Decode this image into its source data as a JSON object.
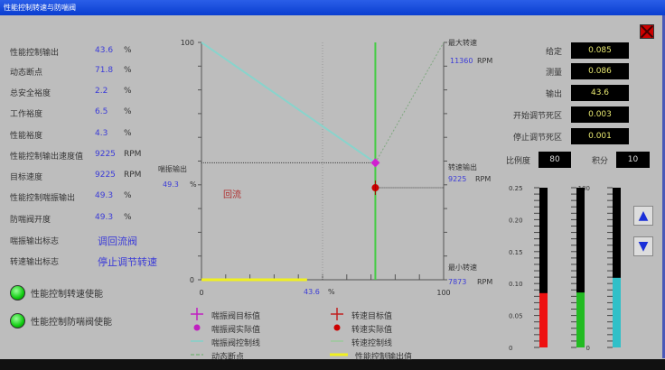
{
  "window": {
    "title": "性能控制转速与防喘阀"
  },
  "left_params": [
    {
      "label": "性能控制输出",
      "value": "43.6",
      "unit": "%"
    },
    {
      "label": "动态断点",
      "value": "71.8",
      "unit": "%"
    },
    {
      "label": "总安全裕度",
      "value": "2.2",
      "unit": "%"
    },
    {
      "label": "工作裕度",
      "value": "6.5",
      "unit": "%"
    },
    {
      "label": "性能裕度",
      "value": "4.3",
      "unit": "%"
    },
    {
      "label": "性能控制输出速度值",
      "value": "9225",
      "unit": "RPM"
    },
    {
      "label": "目标速度",
      "value": "9225",
      "unit": "RPM"
    },
    {
      "label": "性能控制喘振输出",
      "value": "49.3",
      "unit": "%"
    },
    {
      "label": "防喘阀开度",
      "value": "49.3",
      "unit": "%"
    },
    {
      "label": "喘振输出标志",
      "value": "调回流阀",
      "unit": ""
    },
    {
      "label": "转速输出标志",
      "value": "停止调节转速",
      "unit": ""
    }
  ],
  "indicators": [
    {
      "label": "性能控制转速使能",
      "color": "#22dd22"
    },
    {
      "label": "性能控制防喘阀使能",
      "color": "#22dd22"
    }
  ],
  "right_params": [
    {
      "label": "给定",
      "value": "0.085"
    },
    {
      "label": "测量",
      "value": "0.086"
    },
    {
      "label": "输出",
      "value": "43.6"
    },
    {
      "label": "开始调节死区",
      "value": "0.003"
    },
    {
      "label": "停止调节死区",
      "value": "0.001"
    }
  ],
  "pid": {
    "p_label": "比例度",
    "p_value": "80",
    "i_label": "积分",
    "i_value": "10"
  },
  "chart": {
    "y_top": "100",
    "y_bottom": "0",
    "x_left": "0",
    "x_right": "100",
    "surge_label": "喘振输出",
    "surge_value": "49.3",
    "surge_unit": "%",
    "speed_label": "转速输出",
    "speed_value": "9225",
    "speed_unit": "RPM",
    "max_label": "最大转速",
    "max_value": "11360",
    "max_unit": "RPM",
    "min_label": "最小转速",
    "min_value": "7873",
    "min_unit": "RPM",
    "output_value": "43.6",
    "output_unit": "%",
    "mode_text": "回流"
  },
  "chart_data": {
    "type": "line",
    "xlim": [
      0,
      100
    ],
    "ylim_left": [
      0,
      100
    ],
    "ylim_right_rpm": [
      7873,
      11360
    ],
    "dynamic_breakpoint": 71.8,
    "antisurge_target": {
      "x": 71.8,
      "y": 49.3
    },
    "speed_actual_rpm": 9225,
    "antisurge_control_line": [
      [
        0,
        100
      ],
      [
        71.8,
        49.3
      ]
    ],
    "speed_control_line": [
      [
        71.8,
        49.3
      ],
      [
        100,
        100
      ]
    ],
    "performance_output": 43.6,
    "grid_x": [
      50
    ]
  },
  "legend": [
    {
      "label": "喘振阀目标值",
      "symbol": "plus",
      "color": "#c020c0"
    },
    {
      "label": "转速目标值",
      "symbol": "plus",
      "color": "#c02020"
    },
    {
      "label": "喘振阀实际值",
      "symbol": "dot",
      "color": "#c020c0"
    },
    {
      "label": "转速实际值",
      "symbol": "dot",
      "color": "#cc0000"
    },
    {
      "label": "喘振阀控制线",
      "symbol": "line",
      "color": "#80d0c8"
    },
    {
      "label": "转速控制线",
      "symbol": "line",
      "color": "#9ac89a"
    },
    {
      "label": "动态断点",
      "symbol": "dash",
      "color": "#60b060"
    },
    {
      "label": "性能控制输出值",
      "symbol": "thick",
      "color": "#f0f020"
    }
  ],
  "gauges": {
    "scale_small": [
      "0.25",
      "0.20",
      "0.15",
      "0.10",
      "0.05",
      "0"
    ],
    "scale_pct": [
      "100",
      "0"
    ],
    "bars": [
      {
        "value": 0.085,
        "max": 0.25,
        "color": "#ee1111"
      },
      {
        "value": 0.086,
        "max": 0.25,
        "color": "#22bb22"
      },
      {
        "value": 43.6,
        "max": 100,
        "color": "#30c0c8"
      }
    ]
  }
}
